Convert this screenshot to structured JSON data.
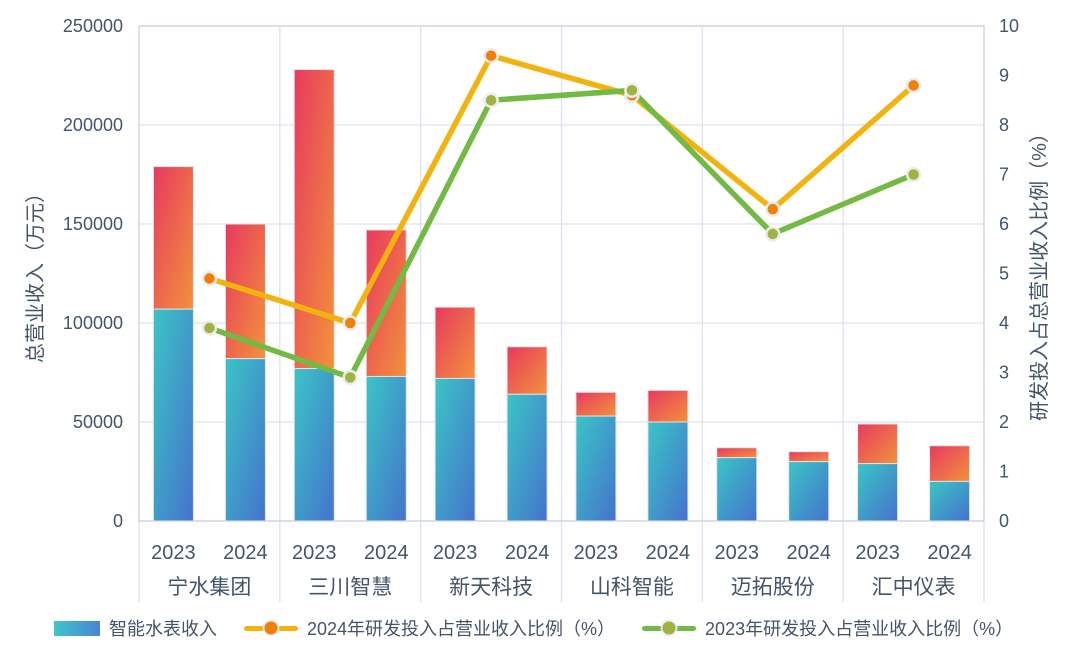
{
  "page": {
    "background": "#ffffff"
  },
  "chart_data": {
    "type": "bar",
    "subtype": "stacked-bar-with-lines",
    "categories": [
      "宁水集团",
      "三川智慧",
      "新天科技",
      "山科智能",
      "迈拓股份",
      "汇中仪表"
    ],
    "years": [
      "2023",
      "2024"
    ],
    "bar_series": {
      "total_revenue": {
        "2023": [
          179000,
          228000,
          108000,
          65000,
          37000,
          49000
        ],
        "2024": [
          150000,
          147000,
          88000,
          66000,
          35000,
          38000
        ]
      },
      "smart_meter_revenue": {
        "2023": [
          107000,
          77000,
          72000,
          53000,
          32000,
          29000
        ],
        "2024": [
          82000,
          73000,
          64000,
          50000,
          30000,
          20000
        ]
      }
    },
    "line_series": [
      {
        "name": "2024年研发投入占营业收入比例（%）",
        "axis": "right",
        "values": [
          4.9,
          4.0,
          9.4,
          8.6,
          6.3,
          8.8
        ]
      },
      {
        "name": "2023年研发投入占营业收入比例（%）",
        "axis": "right",
        "values": [
          3.9,
          2.9,
          8.5,
          8.7,
          5.8,
          7.0
        ]
      }
    ],
    "left_axis": {
      "title": "总营业收入（万元）",
      "min": 0,
      "max": 250000,
      "step": 50000,
      "ticks": [
        "0",
        "50000",
        "100000",
        "150000",
        "200000",
        "250000"
      ]
    },
    "right_axis": {
      "title": "研发投入占总营业收入比例（%）",
      "min": 0,
      "max": 10,
      "step": 1,
      "ticks": [
        "0",
        "1",
        "2",
        "3",
        "4",
        "5",
        "6",
        "7",
        "8",
        "9",
        "10"
      ]
    },
    "grid": {
      "horizontal_every_left_units": 50000,
      "vertical_group_separators": true
    },
    "legend_position": "bottom",
    "colors": {
      "bar_top_gradient": [
        "#E9395E",
        "#F2923B"
      ],
      "bar_smart_gradient": [
        "#3AC5C6",
        "#4573CC"
      ],
      "legend_bar_gradient": [
        "#3FC6CA",
        "#4B82D6"
      ],
      "line_2024": "#F2B30E",
      "marker_2024": "#EF7F07",
      "line_2023": "#72BA44",
      "marker_2023": "#A0B240",
      "marker_ring": "#ECECEC",
      "text": "#44546A",
      "gridline": "#DCE2EE",
      "frame": "#C9D2E2",
      "bar_outline": "#E3E1F0"
    }
  },
  "legend": {
    "bar_label": "智能水表收入",
    "line2024_label": "2024年研发投入占营业收入比例（%）",
    "line2023_label": "2023年研发投入占营业收入比例（%）"
  }
}
